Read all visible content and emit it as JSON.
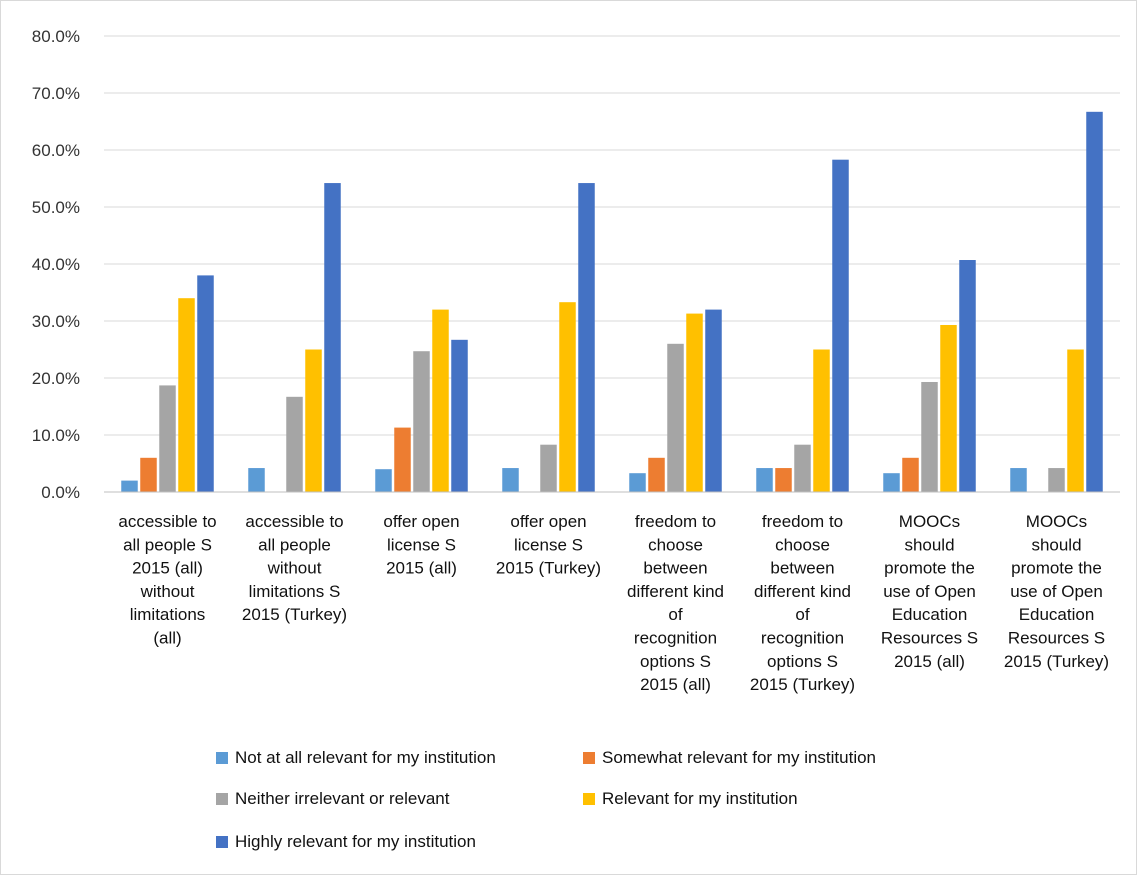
{
  "chart_data": {
    "type": "bar",
    "title": "",
    "xlabel": "",
    "ylabel": "",
    "ylim": [
      0,
      80
    ],
    "yticks": [
      "0.0%",
      "10.0%",
      "20.0%",
      "30.0%",
      "40.0%",
      "50.0%",
      "60.0%",
      "70.0%",
      "80.0%"
    ],
    "grid": true,
    "legend_position": "bottom",
    "categories": [
      [
        "accessible to",
        "all people S",
        "2015 (all)",
        "without",
        "limitations",
        "(all)"
      ],
      [
        "accessible to",
        "all people",
        "without",
        "limitations S",
        "2015 (Turkey)"
      ],
      [
        "offer open",
        "license  S",
        "2015 (all)"
      ],
      [
        "offer open",
        "license S",
        "2015 (Turkey)"
      ],
      [
        "freedom to",
        "choose",
        "between",
        "different kind",
        "of",
        "recognition",
        "options S",
        "2015 (all)"
      ],
      [
        "freedom to",
        "choose",
        "between",
        "different kind",
        "of",
        "recognition",
        "options S",
        "2015 (Turkey)"
      ],
      [
        "MOOCs",
        "should",
        "promote the",
        "use of Open",
        "Education",
        "Resources S",
        "2015 (all)"
      ],
      [
        "MOOCs",
        "should",
        "promote the",
        "use of Open",
        "Education",
        "Resources S",
        "2015 (Turkey)"
      ]
    ],
    "series": [
      {
        "name": "Not at all relevant for my institution",
        "color": "#5b9bd5",
        "values": [
          2.0,
          4.2,
          4.0,
          4.2,
          3.3,
          4.2,
          3.3,
          4.2
        ]
      },
      {
        "name": "Somewhat relevant for my institution",
        "color": "#ed7d31",
        "values": [
          6.0,
          0,
          11.3,
          0,
          6.0,
          4.2,
          6.0,
          0
        ]
      },
      {
        "name": "Neither irrelevant or relevant",
        "color": "#a5a5a5",
        "values": [
          18.7,
          16.7,
          24.7,
          8.3,
          26.0,
          8.3,
          19.3,
          4.2
        ]
      },
      {
        "name": "Relevant for my institution",
        "color": "#ffc000",
        "values": [
          34.0,
          25.0,
          32.0,
          33.3,
          31.3,
          25.0,
          29.3,
          25.0
        ]
      },
      {
        "name": "Highly relevant for my institution",
        "color": "#4472c4",
        "values": [
          38.0,
          54.2,
          26.7,
          54.2,
          32.0,
          58.3,
          40.7,
          66.7
        ]
      }
    ]
  }
}
